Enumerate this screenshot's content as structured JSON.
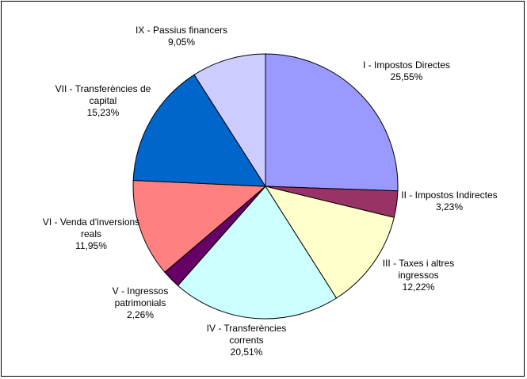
{
  "chart_data": {
    "type": "pie",
    "title": "",
    "start_angle_deg": 0,
    "direction": "clockwise",
    "legend": "none",
    "slices": [
      {
        "label_lines": [
          "I - Impostos Directes"
        ],
        "pct_text": "25,55%",
        "value": 25.55,
        "color": "#9999FF"
      },
      {
        "label_lines": [
          "II - Impostos Indirectes"
        ],
        "pct_text": "3,23%",
        "value": 3.23,
        "color": "#993366"
      },
      {
        "label_lines": [
          "III - Taxes i altres",
          "ingressos"
        ],
        "pct_text": "12,22%",
        "value": 12.22,
        "color": "#FFFFCC"
      },
      {
        "label_lines": [
          "IV - Transferències",
          "corrents"
        ],
        "pct_text": "20,51%",
        "value": 20.51,
        "color": "#CCFFFF"
      },
      {
        "label_lines": [
          "V - Ingressos",
          "patrimonials"
        ],
        "pct_text": "2,26%",
        "value": 2.26,
        "color": "#660066"
      },
      {
        "label_lines": [
          "VI - Venda d'inversions",
          "reals"
        ],
        "pct_text": "11,95%",
        "value": 11.95,
        "color": "#FF8080"
      },
      {
        "label_lines": [
          "VII - Transferències de",
          "capital"
        ],
        "pct_text": "15,23%",
        "value": 15.23,
        "color": "#0066CC"
      },
      {
        "label_lines": [
          "IX - Passius financers"
        ],
        "pct_text": "9,05%",
        "value": 9.05,
        "color": "#CCCCFF"
      }
    ]
  }
}
